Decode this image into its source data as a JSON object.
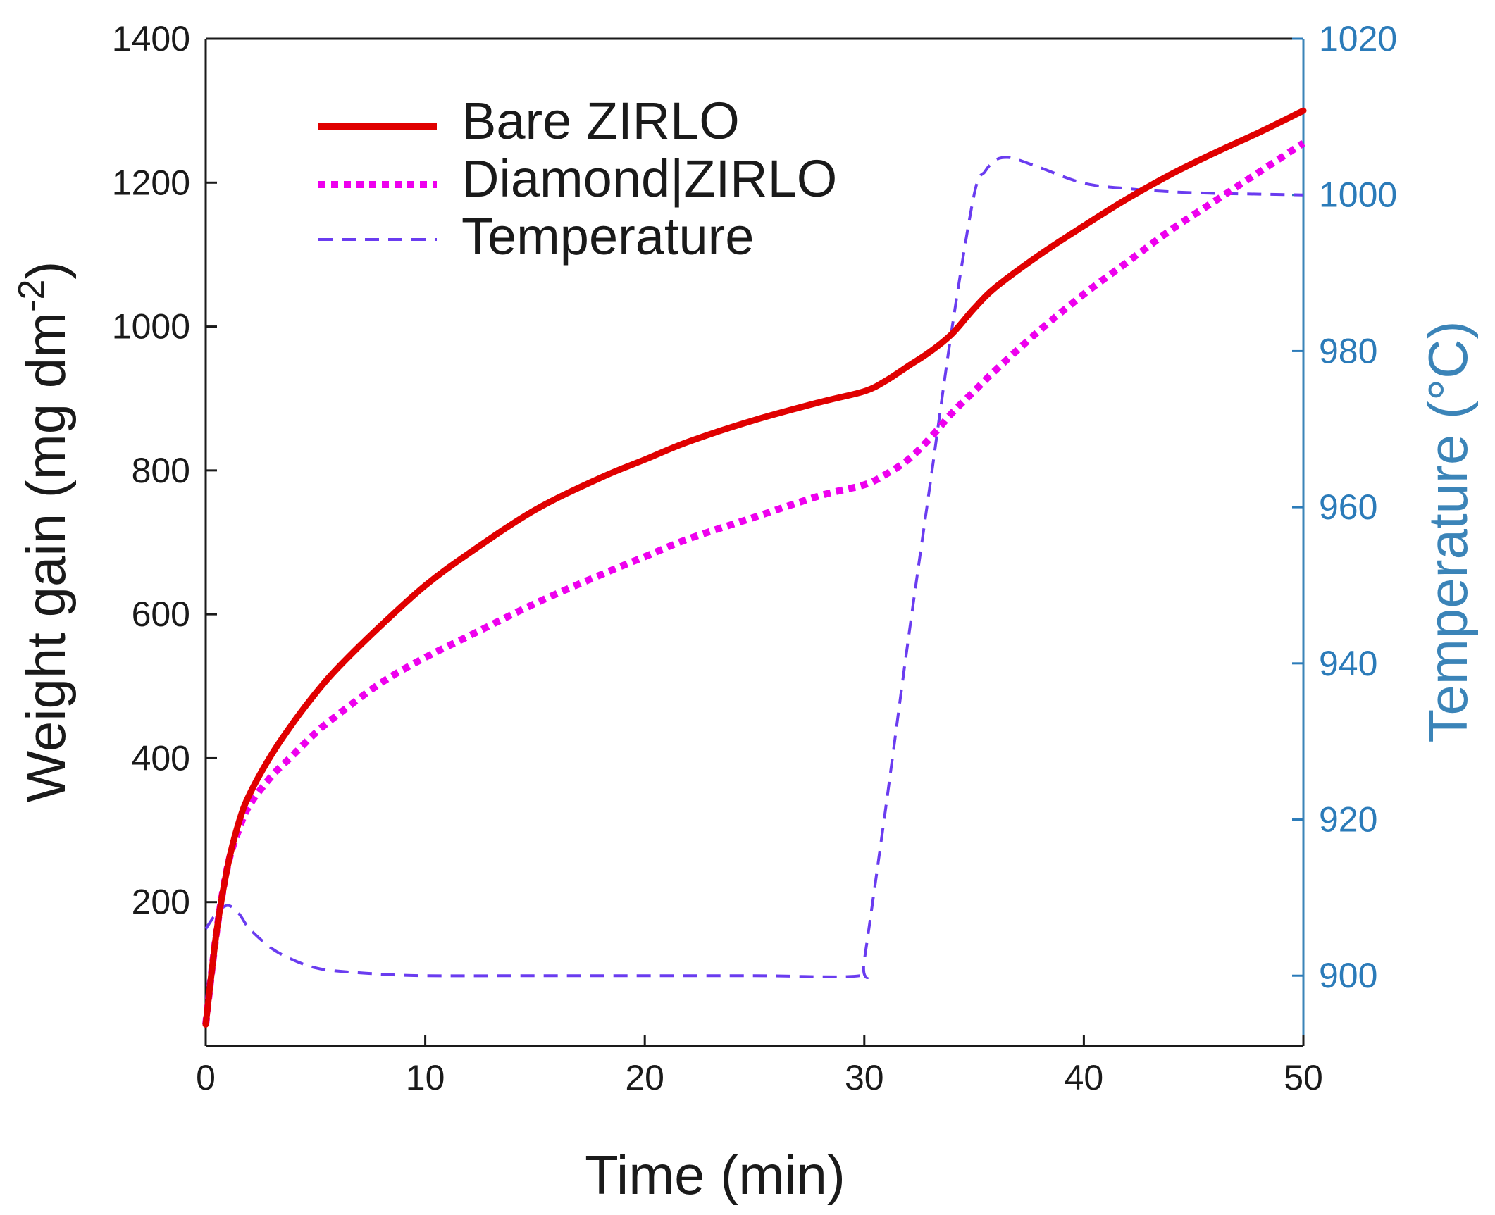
{
  "chart_data": {
    "type": "line",
    "xlabel": "Time (min)",
    "ylabel": "Weight gain (mg dm",
    "ylabel_sup": "-2",
    "ylabel_end": ")",
    "y2label": "Temperature (°C)",
    "xlim": [
      0,
      50
    ],
    "ylim": [
      0,
      1400
    ],
    "y2lim": [
      891,
      1020
    ],
    "x_ticks": [
      "0",
      "10",
      "20",
      "30",
      "40",
      "50"
    ],
    "y_ticks": [
      "200",
      "400",
      "600",
      "800",
      "1000",
      "1200",
      "1400"
    ],
    "y2_ticks": [
      "900",
      "920",
      "940",
      "960",
      "980",
      "1000",
      "1020"
    ],
    "grid": false,
    "legend_position": "top-left",
    "colors": {
      "bare": "#e00000",
      "diamond": "#ee00ee",
      "temperature": "#6a3cf0",
      "right_axis": "#2b7bb9",
      "axis": "#1a1a1a"
    },
    "series": [
      {
        "name": "Bare ZIRLO",
        "axis": "left",
        "style": "solid",
        "x": [
          0,
          0.5,
          1,
          1.5,
          2,
          3,
          4,
          5,
          6,
          8,
          10,
          12,
          15,
          18,
          20,
          22,
          25,
          28,
          30,
          31,
          32,
          33,
          34,
          35,
          36,
          38,
          40,
          42,
          44,
          46,
          48,
          50
        ],
        "y": [
          30,
          160,
          250,
          310,
          350,
          405,
          450,
          490,
          525,
          585,
          640,
          685,
          745,
          790,
          815,
          840,
          870,
          895,
          910,
          925,
          945,
          965,
          990,
          1025,
          1055,
          1100,
          1140,
          1178,
          1212,
          1242,
          1270,
          1300
        ]
      },
      {
        "name": "Diamond|ZIRLO",
        "axis": "left",
        "style": "dotted",
        "x": [
          0,
          0.5,
          1,
          1.5,
          2,
          3,
          4,
          5,
          6,
          8,
          10,
          12,
          15,
          18,
          20,
          22,
          25,
          28,
          30,
          31,
          32,
          33,
          34,
          35,
          36,
          38,
          40,
          42,
          44,
          46,
          48,
          50
        ],
        "y": [
          30,
          160,
          250,
          300,
          335,
          375,
          405,
          435,
          460,
          505,
          540,
          570,
          615,
          655,
          680,
          705,
          735,
          765,
          780,
          795,
          815,
          845,
          880,
          910,
          940,
          995,
          1045,
          1090,
          1135,
          1175,
          1215,
          1255
        ]
      },
      {
        "name": "Temperature",
        "axis": "right",
        "style": "dashed",
        "x": [
          0,
          0.5,
          1,
          1.5,
          2,
          3,
          4,
          5,
          6,
          8,
          10,
          15,
          20,
          25,
          29.8,
          30,
          31,
          32,
          33,
          34,
          35,
          35.5,
          36,
          36.5,
          37,
          38,
          40,
          42,
          44,
          46,
          48,
          50
        ],
        "y": [
          906,
          908,
          909,
          908,
          906,
          903.5,
          902,
          901,
          900.6,
          900.2,
          900,
          900,
          900,
          900,
          900,
          902,
          922,
          943,
          963,
          983,
          1000,
          1003,
          1004.5,
          1004.8,
          1004.5,
          1003.5,
          1001.5,
          1000.8,
          1000.4,
          1000.2,
          1000.1,
          1000
        ]
      }
    ]
  }
}
